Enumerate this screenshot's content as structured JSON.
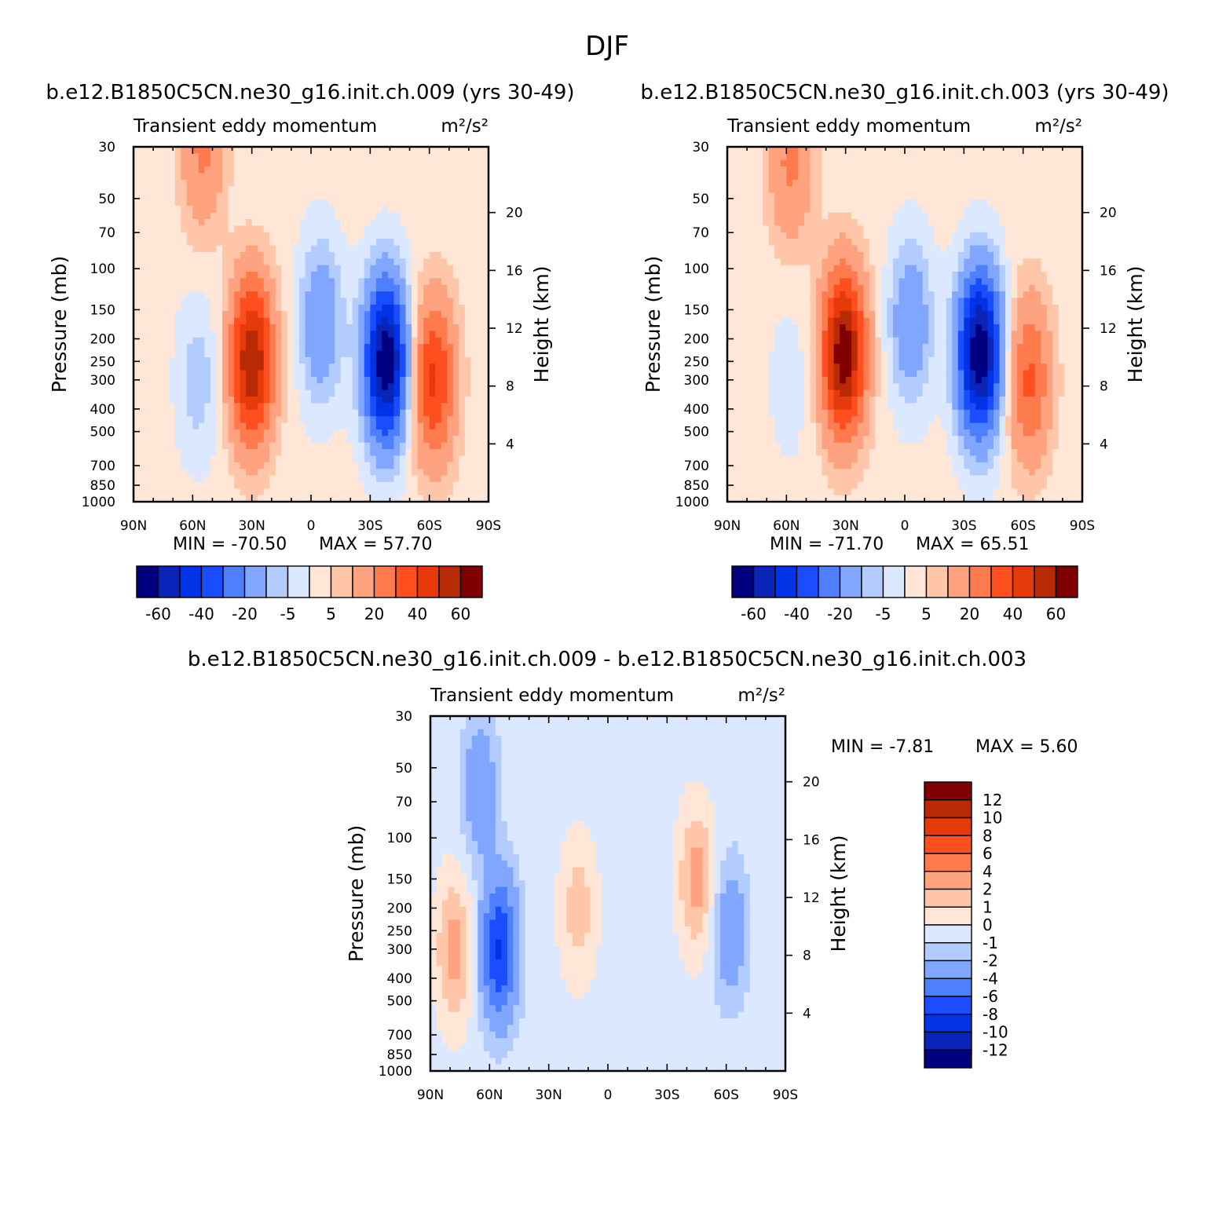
{
  "figure_title": "DJF",
  "colors": {
    "ctrl_levels": [
      "#000080",
      "#0a24b8",
      "#0033e6",
      "#1a4dff",
      "#4d7fff",
      "#80a6ff",
      "#b3ccff",
      "#dbe8ff",
      "#ffe6d6",
      "#ffc6aa",
      "#ffa27f",
      "#ff7a4d",
      "#ff4f1f",
      "#e63a0a",
      "#b82a05",
      "#800000"
    ],
    "diff_levels": [
      "#000080",
      "#0a24b8",
      "#0033e6",
      "#1a4dff",
      "#4d7fff",
      "#80a6ff",
      "#b3ccff",
      "#dbe8ff",
      "#ffe6d6",
      "#ffc6aa",
      "#ffa27f",
      "#ff7a4d",
      "#ff4f1f",
      "#e63a0a",
      "#b82a05",
      "#800000"
    ]
  },
  "chart_data": [
    {
      "id": "panel1",
      "type": "heatmap",
      "case_title": "b.e12.B1850C5CN.ne30_g16.init.ch.009 (yrs 30-49)",
      "variable": "Transient eddy momentum",
      "units": "m²/s²",
      "x_ticks": [
        "90N",
        "60N",
        "30N",
        "0",
        "30S",
        "60S",
        "90S"
      ],
      "x_range": [
        90,
        -90
      ],
      "ylabel_left": "Pressure (mb)",
      "y_ticks_left": [
        "30",
        "50",
        "70",
        "100",
        "150",
        "200",
        "250",
        "300",
        "400",
        "500",
        "700",
        "850",
        "1000"
      ],
      "y_range_mb": [
        30,
        1000
      ],
      "ylabel_right": "Height (km)",
      "y_ticks_right": [
        "20",
        "16",
        "12",
        "8",
        "4"
      ],
      "min_text": "MIN = -70.50",
      "max_text": "MAX = 57.70",
      "min": -70.5,
      "max": 57.7,
      "levels": [
        -60,
        -50,
        -40,
        -30,
        -20,
        -10,
        -5,
        0,
        5,
        10,
        20,
        30,
        40,
        50,
        60
      ],
      "colorbar_labels": [
        "-60",
        "-40",
        "-20",
        "-5",
        "5",
        "20",
        "40",
        "60"
      ],
      "features": [
        {
          "lat": 55,
          "p": 30,
          "value": 20
        },
        {
          "lat": 30,
          "p": 250,
          "value": 57.7
        },
        {
          "lat": 57,
          "p": 300,
          "value": -10
        },
        {
          "lat": -5,
          "p": 170,
          "value": -20
        },
        {
          "lat": -38,
          "p": 250,
          "value": -70.5
        },
        {
          "lat": -62,
          "p": 300,
          "value": 40
        }
      ]
    },
    {
      "id": "panel2",
      "type": "heatmap",
      "case_title": "b.e12.B1850C5CN.ne30_g16.init.ch.003 (yrs 30-49)",
      "variable": "Transient eddy momentum",
      "units": "m²/s²",
      "x_ticks": [
        "90N",
        "60N",
        "30N",
        "0",
        "30S",
        "60S",
        "90S"
      ],
      "x_range": [
        90,
        -90
      ],
      "ylabel_left": "Pressure (mb)",
      "y_ticks_left": [
        "30",
        "50",
        "70",
        "100",
        "150",
        "200",
        "250",
        "300",
        "400",
        "500",
        "700",
        "850",
        "1000"
      ],
      "y_range_mb": [
        30,
        1000
      ],
      "ylabel_right": "Height (km)",
      "y_ticks_right": [
        "20",
        "16",
        "12",
        "8",
        "4"
      ],
      "min_text": "MIN = -71.70",
      "max_text": "MAX = 65.51",
      "min": -71.7,
      "max": 65.51,
      "levels": [
        -60,
        -50,
        -40,
        -30,
        -20,
        -10,
        -5,
        0,
        5,
        10,
        20,
        30,
        40,
        50,
        60
      ],
      "colorbar_labels": [
        "-60",
        "-40",
        "-20",
        "-5",
        "5",
        "20",
        "40",
        "60"
      ],
      "features": [
        {
          "lat": 58,
          "p": 35,
          "value": 20
        },
        {
          "lat": 31,
          "p": 230,
          "value": 65.51
        },
        {
          "lat": 58,
          "p": 300,
          "value": -5
        },
        {
          "lat": -3,
          "p": 170,
          "value": -20
        },
        {
          "lat": -38,
          "p": 230,
          "value": -71.7
        },
        {
          "lat": -63,
          "p": 300,
          "value": 30
        }
      ]
    },
    {
      "id": "panel3",
      "type": "heatmap",
      "case_title": "b.e12.B1850C5CN.ne30_g16.init.ch.009 - b.e12.B1850C5CN.ne30_g16.init.ch.003",
      "variable": "Transient eddy momentum",
      "units": "m²/s²",
      "x_ticks": [
        "90N",
        "60N",
        "30N",
        "0",
        "30S",
        "60S",
        "90S"
      ],
      "x_range": [
        90,
        -90
      ],
      "ylabel_left": "Pressure (mb)",
      "y_ticks_left": [
        "30",
        "50",
        "70",
        "100",
        "150",
        "200",
        "250",
        "300",
        "400",
        "500",
        "700",
        "850",
        "1000"
      ],
      "y_range_mb": [
        30,
        1000
      ],
      "ylabel_right": "Height (km)",
      "y_ticks_right": [
        "20",
        "16",
        "12",
        "8",
        "4"
      ],
      "min_text": "MIN = -7.81",
      "max_text": "MAX = 5.60",
      "min": -7.81,
      "max": 5.6,
      "levels": [
        -12,
        -10,
        -8,
        -6,
        -4,
        -2,
        -1,
        0,
        1,
        2,
        4,
        6,
        8,
        10,
        12
      ],
      "colorbar_labels": [
        "12",
        "10",
        "8",
        "6",
        "4",
        "2",
        "1",
        "0",
        "-1",
        "-2",
        "-4",
        "-6",
        "-8",
        "-10",
        "-12"
      ],
      "features": [
        {
          "lat": 55,
          "p": 300,
          "value": -7.81
        },
        {
          "lat": 65,
          "p": 60,
          "value": -3
        },
        {
          "lat": 78,
          "p": 300,
          "value": 3
        },
        {
          "lat": 15,
          "p": 200,
          "value": 2
        },
        {
          "lat": -45,
          "p": 150,
          "value": 3
        },
        {
          "lat": -62,
          "p": 250,
          "value": -3
        }
      ]
    }
  ]
}
